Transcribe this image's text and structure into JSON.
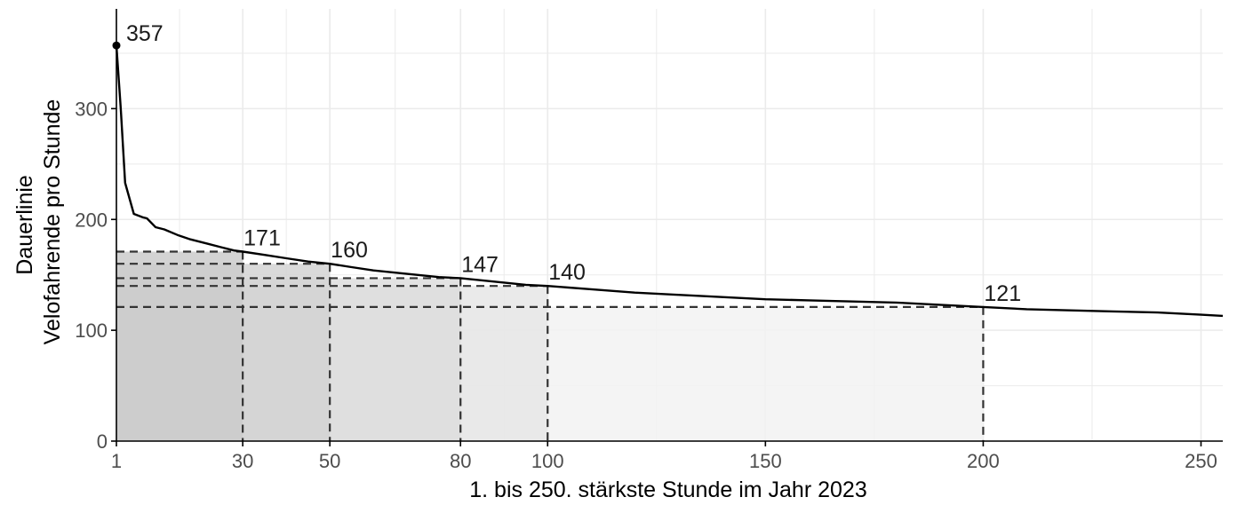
{
  "chart_data": {
    "type": "line",
    "title": "",
    "xlabel": "1. bis 250. stärkste Stunde im Jahr 2023",
    "ylabel_lines": [
      "Dauerlinie",
      "Velofahrende pro Stunde"
    ],
    "xlim": [
      1,
      255
    ],
    "ylim": [
      0,
      390
    ],
    "x_ticks": [
      1,
      30,
      50,
      80,
      100,
      150,
      200,
      250
    ],
    "y_ticks": [
      0,
      100,
      200,
      300
    ],
    "grid": true,
    "legend": "none",
    "series": [
      {
        "x": [
          1,
          2,
          3,
          5,
          7,
          8,
          10,
          12,
          15,
          18,
          20,
          22,
          25,
          28,
          30,
          35,
          40,
          45,
          50,
          55,
          60,
          65,
          70,
          75,
          80,
          85,
          90,
          95,
          100,
          110,
          120,
          130,
          140,
          150,
          160,
          170,
          180,
          190,
          200,
          210,
          220,
          230,
          240,
          250,
          255
        ],
        "y": [
          357,
          300,
          233,
          205,
          202,
          201,
          193,
          191,
          186,
          182,
          180,
          178,
          175,
          172,
          171,
          168,
          165,
          162,
          160,
          157,
          154,
          152,
          150,
          148,
          147,
          145,
          143,
          141,
          140,
          137,
          134,
          132,
          130,
          128,
          127,
          126,
          125,
          123,
          121,
          119,
          118,
          117,
          116,
          114,
          113
        ],
        "color": "#000000"
      }
    ],
    "peak": {
      "x": 1,
      "y": 357,
      "label": "357"
    },
    "markers": [
      {
        "x": 200,
        "y": 121,
        "label": "121",
        "fill": "#f2f2f2"
      },
      {
        "x": 100,
        "y": 140,
        "label": "140",
        "fill": "#e6e6e6"
      },
      {
        "x": 80,
        "y": 147,
        "label": "147",
        "fill": "#dddddd"
      },
      {
        "x": 50,
        "y": 160,
        "label": "160",
        "fill": "#d3d3d3"
      },
      {
        "x": 30,
        "y": 171,
        "label": "171",
        "fill": "#cbcbcb"
      }
    ],
    "colors": {
      "line": "#000000",
      "grid": "#ebebeb",
      "axis": "#000000",
      "dash": "#333333"
    }
  }
}
